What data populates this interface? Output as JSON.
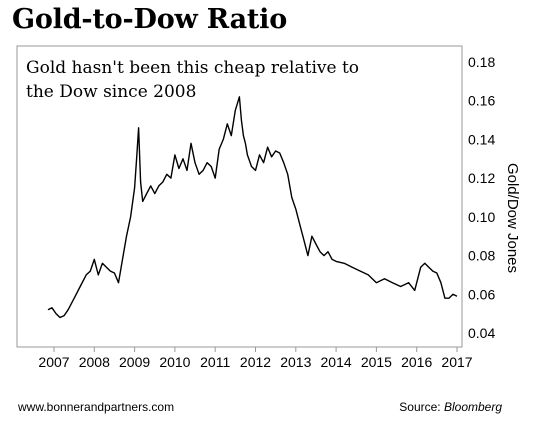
{
  "header": {
    "title": "Gold-to-Dow Ratio"
  },
  "footer": {
    "website": "www.bonnerandpartners.com",
    "source_label": "Source:",
    "source_name": "Bloomberg"
  },
  "chart_data": {
    "type": "line",
    "title": "Gold-to-Dow Ratio",
    "annotation": [
      "Gold hasn't been this cheap relative to",
      "the Dow since 2008"
    ],
    "xlabel": "",
    "ylabel": "Gold/Dow Jones",
    "xlim": [
      2006.85,
      2017.05
    ],
    "ylim": [
      0.04,
      0.18
    ],
    "x_ticks": [
      "2007",
      "2008",
      "2009",
      "2010",
      "2011",
      "2012",
      "2013",
      "2014",
      "2015",
      "2016",
      "2017"
    ],
    "y_ticks": [
      "0.04",
      "0.06",
      "0.08",
      "0.10",
      "0.12",
      "0.14",
      "0.16",
      "0.18"
    ],
    "y_axis_side": "right",
    "grid": false,
    "series": [
      {
        "color": "#000000",
        "x": [
          2006.85,
          2006.95,
          2007.05,
          2007.15,
          2007.25,
          2007.35,
          2007.5,
          2007.65,
          2007.8,
          2007.9,
          2008.0,
          2008.1,
          2008.2,
          2008.3,
          2008.4,
          2008.5,
          2008.6,
          2008.7,
          2008.8,
          2008.9,
          2009.0,
          2009.05,
          2009.1,
          2009.15,
          2009.2,
          2009.3,
          2009.4,
          2009.5,
          2009.6,
          2009.7,
          2009.8,
          2009.9,
          2010.0,
          2010.1,
          2010.2,
          2010.3,
          2010.4,
          2010.5,
          2010.6,
          2010.7,
          2010.8,
          2010.9,
          2011.0,
          2011.1,
          2011.2,
          2011.3,
          2011.4,
          2011.5,
          2011.6,
          2011.65,
          2011.7,
          2011.75,
          2011.8,
          2011.9,
          2012.0,
          2012.1,
          2012.2,
          2012.3,
          2012.4,
          2012.5,
          2012.6,
          2012.7,
          2012.8,
          2012.9,
          2013.0,
          2013.1,
          2013.2,
          2013.3,
          2013.4,
          2013.5,
          2013.6,
          2013.7,
          2013.8,
          2013.9,
          2014.0,
          2014.2,
          2014.4,
          2014.6,
          2014.8,
          2015.0,
          2015.2,
          2015.4,
          2015.6,
          2015.8,
          2015.95,
          2016.1,
          2016.2,
          2016.3,
          2016.4,
          2016.5,
          2016.6,
          2016.7,
          2016.8,
          2016.9,
          2017.0
        ],
        "y": [
          0.052,
          0.053,
          0.05,
          0.048,
          0.049,
          0.052,
          0.058,
          0.064,
          0.07,
          0.072,
          0.078,
          0.07,
          0.076,
          0.074,
          0.072,
          0.071,
          0.066,
          0.078,
          0.09,
          0.1,
          0.115,
          0.13,
          0.146,
          0.118,
          0.108,
          0.112,
          0.116,
          0.112,
          0.116,
          0.118,
          0.122,
          0.12,
          0.132,
          0.125,
          0.13,
          0.124,
          0.138,
          0.128,
          0.122,
          0.124,
          0.128,
          0.126,
          0.12,
          0.135,
          0.14,
          0.148,
          0.142,
          0.155,
          0.162,
          0.15,
          0.142,
          0.138,
          0.132,
          0.126,
          0.124,
          0.132,
          0.128,
          0.136,
          0.131,
          0.134,
          0.133,
          0.128,
          0.122,
          0.11,
          0.104,
          0.096,
          0.088,
          0.08,
          0.09,
          0.086,
          0.082,
          0.08,
          0.082,
          0.078,
          0.077,
          0.076,
          0.074,
          0.072,
          0.07,
          0.066,
          0.068,
          0.066,
          0.064,
          0.066,
          0.062,
          0.074,
          0.076,
          0.074,
          0.072,
          0.071,
          0.066,
          0.058,
          0.058,
          0.06,
          0.059
        ]
      }
    ]
  }
}
